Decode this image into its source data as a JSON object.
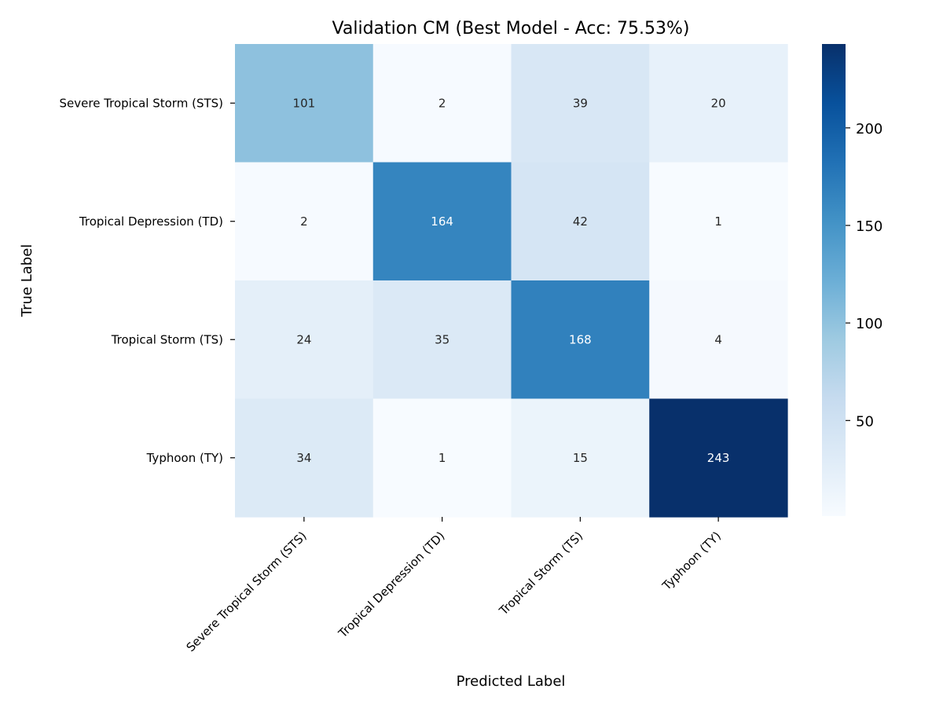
{
  "chart_data": {
    "type": "heatmap",
    "title": "Validation CM (Best Model - Acc: 75.53%)",
    "xlabel": "Predicted Label",
    "ylabel": "True Label",
    "x_categories": [
      "Severe Tropical Storm (STS)",
      "Tropical Depression (TD)",
      "Tropical Storm (TS)",
      "Typhoon (TY)"
    ],
    "y_categories": [
      "Severe Tropical Storm (STS)",
      "Tropical Depression (TD)",
      "Tropical Storm (TS)",
      "Typhoon (TY)"
    ],
    "values": [
      [
        101,
        2,
        39,
        20
      ],
      [
        2,
        164,
        42,
        1
      ],
      [
        24,
        35,
        168,
        4
      ],
      [
        34,
        1,
        15,
        243
      ]
    ],
    "colormap": "Blues",
    "colors": {
      "low": "#f7fbff",
      "high": "#08306b"
    },
    "colorbar": {
      "range": [
        1,
        243
      ],
      "ticks": [
        50,
        100,
        150,
        200
      ],
      "tick_labels": [
        "50",
        "100",
        "150",
        "200"
      ]
    }
  }
}
